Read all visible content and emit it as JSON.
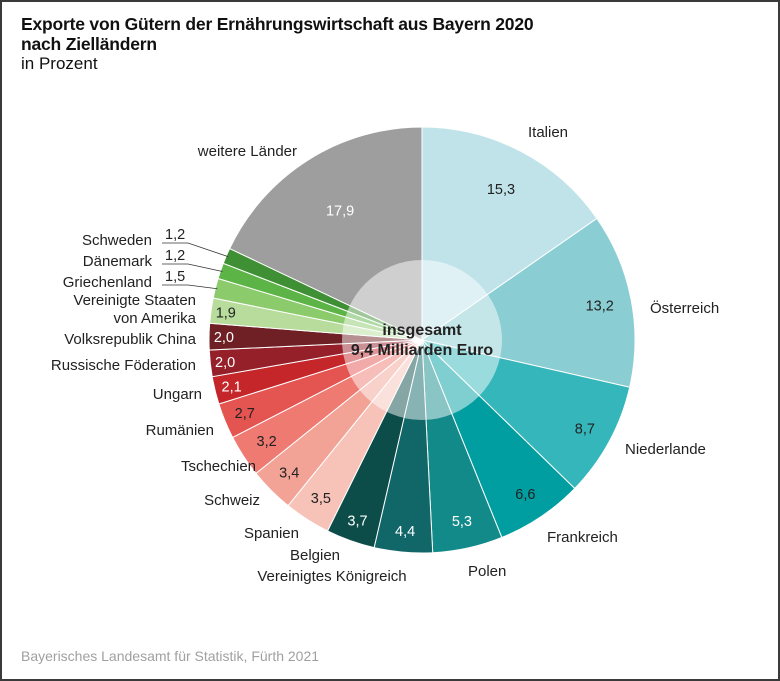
{
  "header": {
    "title_line1": "Exporte von Gütern der Ernährungswirtschaft aus Bayern 2020",
    "title_line2": "nach Zielländern",
    "subtitle": "in Prozent"
  },
  "footer": {
    "source": "Bayerisches Landesamt für Statistik, Fürth 2021"
  },
  "chart_data": {
    "type": "pie",
    "variant": "donut-with-translucent-center",
    "title": "Exporte von Gütern der Ernährungswirtschaft aus Bayern 2020 nach Zielländern",
    "subtitle": "in Prozent",
    "center_label": [
      "insgesamt",
      "9,4 Milliarden Euro"
    ],
    "start_angle": "12 o'clock",
    "direction": "clockwise",
    "slices": [
      {
        "label": "Italien",
        "value": 15.3,
        "display": "15,3",
        "color": "#bfe3e8",
        "text_color": "#222222"
      },
      {
        "label": "Österreich",
        "value": 13.2,
        "display": "13,2",
        "color": "#8acdd3",
        "text_color": "#222222"
      },
      {
        "label": "Niederlande",
        "value": 8.7,
        "display": "8,7",
        "color": "#35b6bb",
        "text_color": "#222222"
      },
      {
        "label": "Frankreich",
        "value": 6.6,
        "display": "6,6",
        "color": "#009ea0",
        "text_color": "#222222"
      },
      {
        "label": "Polen",
        "value": 5.3,
        "display": "5,3",
        "color": "#138a8a",
        "text_color": "#ffffff"
      },
      {
        "label": "Vereinigtes Königreich",
        "value": 4.4,
        "display": "4,4",
        "color": "#116668",
        "text_color": "#ffffff"
      },
      {
        "label": "Belgien",
        "value": 3.7,
        "display": "3,7",
        "color": "#0c4d4a",
        "text_color": "#ffffff"
      },
      {
        "label": "Spanien",
        "value": 3.5,
        "display": "3,5",
        "color": "#f7c3b9",
        "text_color": "#222222"
      },
      {
        "label": "Schweiz",
        "value": 3.4,
        "display": "3,4",
        "color": "#f2a396",
        "text_color": "#222222"
      },
      {
        "label": "Tschechien",
        "value": 3.2,
        "display": "3,2",
        "color": "#ee7a72",
        "text_color": "#222222"
      },
      {
        "label": "Rumänien",
        "value": 2.7,
        "display": "2,7",
        "color": "#e45451",
        "text_color": "#222222"
      },
      {
        "label": "Ungarn",
        "value": 2.1,
        "display": "2,1",
        "color": "#c4262a",
        "text_color": "#ffffff"
      },
      {
        "label": "Russische Föderation",
        "value": 2.0,
        "display": "2,0",
        "color": "#96202a",
        "text_color": "#ffffff"
      },
      {
        "label": "Volksrepublik China",
        "value": 2.0,
        "display": "2,0",
        "color": "#6e2025",
        "text_color": "#ffffff"
      },
      {
        "label": "Vereinigte Staaten von Amerika",
        "value": 1.9,
        "display": "1,9",
        "color": "#b7dc9c",
        "text_color": "#222222"
      },
      {
        "label": "Griechenland",
        "value": 1.5,
        "display": "1,5",
        "color": "#8ccb6c",
        "text_color": "#222222"
      },
      {
        "label": "Dänemark",
        "value": 1.2,
        "display": "1,2",
        "color": "#5db446",
        "text_color": "#222222"
      },
      {
        "label": "Schweden",
        "value": 1.2,
        "display": "1,2",
        "color": "#3f8f34",
        "text_color": "#222222"
      },
      {
        "label": "weitere Länder",
        "value": 17.9,
        "display": "17,9",
        "color": "#9d9e9d",
        "text_color": "#ffffff"
      }
    ]
  }
}
